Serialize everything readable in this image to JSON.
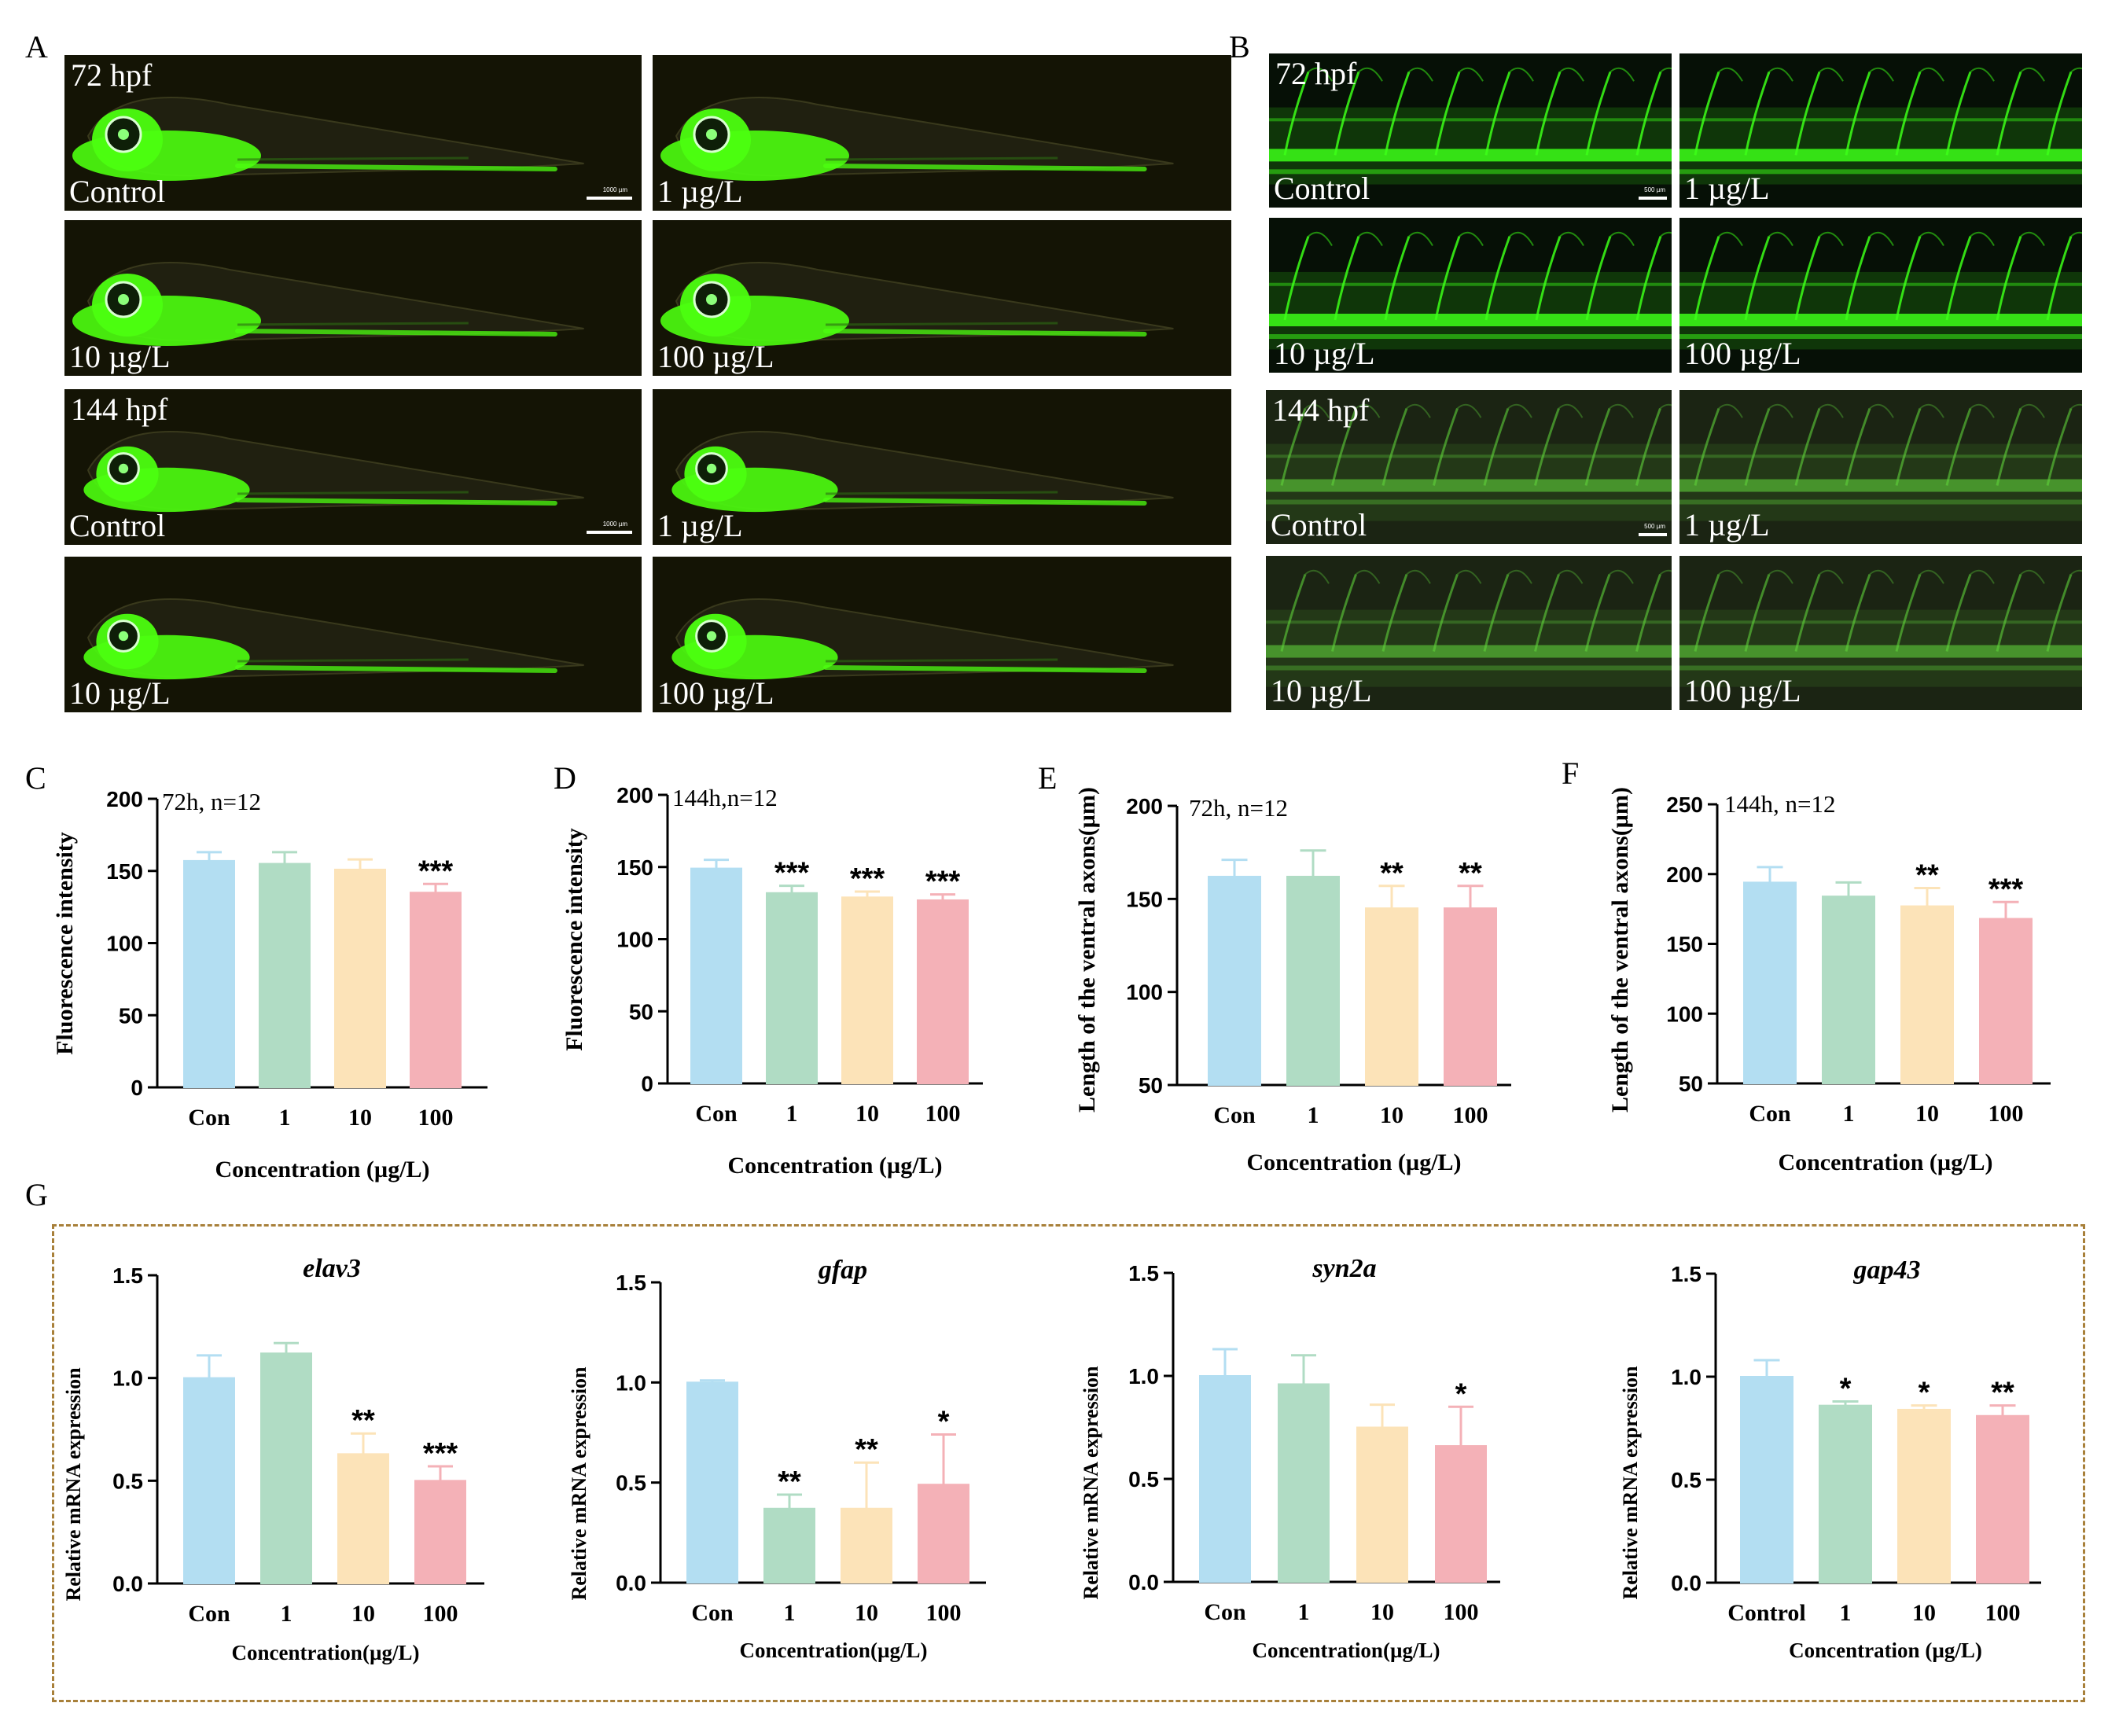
{
  "figure": {
    "panel_labels": {
      "a": "A",
      "b": "B",
      "c": "C",
      "d": "D",
      "e": "E",
      "f": "F",
      "g": "G"
    },
    "panel_a": {
      "row1_time": "72 hpf",
      "row3_time": "144 hpf",
      "labels": [
        "Control",
        "1 µg/L",
        "10 µg/L",
        "100 µg/L",
        "Control",
        "1 µg/L",
        "10 µg/L",
        "100 µg/L"
      ],
      "scale_bar": "1000 µm"
    },
    "panel_b": {
      "row1_time": "72 hpf",
      "row3_time": "144 hpf",
      "labels": [
        "Control",
        "1 µg/L",
        "10 µg/L",
        "100 µg/L",
        "Control",
        "1 µg/L",
        "10 µg/L",
        "100 µg/L"
      ],
      "scale_bar": "500 µm"
    }
  },
  "colors": {
    "con": "#b3def2",
    "c1": "#b0dcc4",
    "c10": "#fce3b8",
    "c100": "#f4b1b7",
    "fluor": "#4cff10",
    "dash": "#a8803a"
  },
  "chart_data": [
    {
      "id": "C",
      "type": "bar",
      "annotation": "72h, n=12",
      "ylabel": "Fluorescence intensity",
      "xlabel": "Concentration (µg/L)",
      "categories": [
        "Con",
        "1",
        "10",
        "100"
      ],
      "values": [
        157,
        155,
        151,
        135
      ],
      "errors": [
        6,
        8,
        7,
        6
      ],
      "sig": [
        "",
        "",
        "",
        "***"
      ],
      "ylim": [
        0,
        200
      ],
      "yticks": [
        0,
        50,
        100,
        150,
        200
      ]
    },
    {
      "id": "D",
      "type": "bar",
      "annotation": "144h,n=12",
      "ylabel": "Fluorescence intensity",
      "xlabel": "Concentration (µg/L)",
      "categories": [
        "Con",
        "1",
        "10",
        "100"
      ],
      "values": [
        149,
        132,
        129,
        127
      ],
      "errors": [
        6,
        5,
        4,
        4
      ],
      "sig": [
        "",
        "***",
        "***",
        "***"
      ],
      "ylim": [
        0,
        200
      ],
      "yticks": [
        0,
        50,
        100,
        150,
        200
      ]
    },
    {
      "id": "E",
      "type": "bar",
      "annotation": "72h, n=12",
      "ylabel": "Length of the ventral axons(µm)",
      "xlabel": "Concentration (µg/L)",
      "categories": [
        "Con",
        "1",
        "10",
        "100"
      ],
      "values": [
        162,
        162,
        145,
        145
      ],
      "errors": [
        9,
        14,
        12,
        12
      ],
      "sig": [
        "",
        "",
        "**",
        "**"
      ],
      "ylim": [
        50,
        200
      ],
      "yticks": [
        50,
        100,
        150,
        200
      ]
    },
    {
      "id": "F",
      "type": "bar",
      "annotation": "144h, n=12",
      "ylabel": "Length of the ventral axons(µm)",
      "xlabel": "Concentration (µg/L)",
      "categories": [
        "Con",
        "1",
        "10",
        "100"
      ],
      "values": [
        194,
        184,
        177,
        168
      ],
      "errors": [
        11,
        10,
        13,
        12
      ],
      "sig": [
        "",
        "",
        "**",
        "***"
      ],
      "ylim": [
        50,
        250
      ],
      "yticks": [
        50,
        100,
        150,
        200,
        250
      ]
    },
    {
      "id": "G1",
      "type": "bar",
      "title": "elav3",
      "ylabel": "Relative mRNA expression",
      "xlabel": "Concentration(µg/L)",
      "categories": [
        "Con",
        "1",
        "10",
        "100"
      ],
      "values": [
        1.0,
        1.12,
        0.63,
        0.5
      ],
      "errors": [
        0.11,
        0.05,
        0.1,
        0.07
      ],
      "sig": [
        "",
        "",
        "**",
        "***"
      ],
      "ylim": [
        0,
        1.5
      ],
      "yticks": [
        0.0,
        0.5,
        1.0,
        1.5
      ]
    },
    {
      "id": "G2",
      "type": "bar",
      "title": "gfap",
      "ylabel": "Relative mRNA expression",
      "xlabel": "Concentration(µg/L)",
      "categories": [
        "Con",
        "1",
        "10",
        "100"
      ],
      "values": [
        1.0,
        0.37,
        0.37,
        0.49
      ],
      "errors": [
        0.01,
        0.07,
        0.23,
        0.25
      ],
      "sig": [
        "",
        "**",
        "**",
        "*"
      ],
      "ylim": [
        0,
        1.5
      ],
      "yticks": [
        0.0,
        0.5,
        1.0,
        1.5
      ]
    },
    {
      "id": "G3",
      "type": "bar",
      "title": "syn2a",
      "ylabel": "Relative mRNA expression",
      "xlabel": "Concentration(µg/L)",
      "categories": [
        "Con",
        "1",
        "10",
        "100"
      ],
      "values": [
        1.0,
        0.96,
        0.75,
        0.66
      ],
      "errors": [
        0.13,
        0.14,
        0.11,
        0.19
      ],
      "sig": [
        "",
        "",
        "",
        "*"
      ],
      "ylim": [
        0,
        1.5
      ],
      "yticks": [
        0.0,
        0.5,
        1.0,
        1.5
      ]
    },
    {
      "id": "G4",
      "type": "bar",
      "title": "gap43",
      "ylabel": "Relative mRNA expression",
      "xlabel": "Concentration (µg/L)",
      "categories": [
        "Control",
        "1",
        "10",
        "100"
      ],
      "values": [
        1.0,
        0.86,
        0.84,
        0.81
      ],
      "errors": [
        0.08,
        0.02,
        0.02,
        0.05
      ],
      "sig": [
        "",
        "*",
        "*",
        "**"
      ],
      "ylim": [
        0,
        1.5
      ],
      "yticks": [
        0.0,
        0.5,
        1.0,
        1.5
      ]
    }
  ]
}
